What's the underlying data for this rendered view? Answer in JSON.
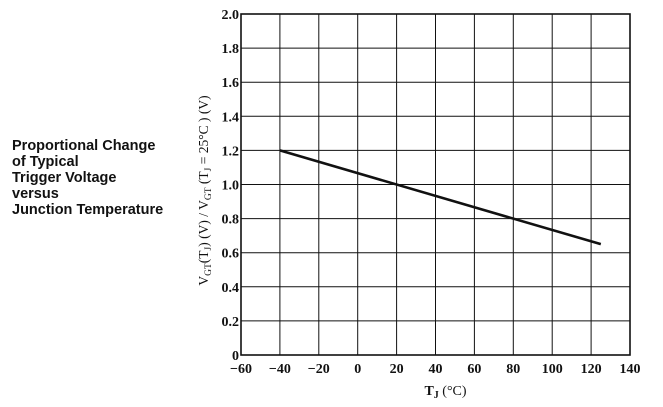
{
  "chart_data": {
    "type": "line",
    "title_lines": [
      "Proportional Change",
      "of Typical",
      "Trigger Voltage",
      "versus",
      "Junction Temperature"
    ],
    "ylabel": {
      "prefix": "V",
      "sub1": "GT",
      "mid1": "(T",
      "sub2": "J",
      "mid2": ") (V) / V",
      "sub3": "GT",
      "mid3": " (T",
      "sub4": "J",
      "suffix": " = 25°C ) (V)"
    },
    "xlabel": {
      "main": "T",
      "sub": "J",
      "unit": " (°C)"
    },
    "xlim": [
      -60,
      140
    ],
    "ylim": [
      0,
      2.0
    ],
    "x_ticks": [
      "−60",
      "−40",
      "−20",
      "0",
      "20",
      "40",
      "60",
      "80",
      "100",
      "120",
      "140"
    ],
    "y_ticks": [
      "0",
      "0.2",
      "0.4",
      "0.6",
      "0.8",
      "1.0",
      "1.2",
      "1.4",
      "1.6",
      "1.8",
      "2.0"
    ],
    "grid": true,
    "series": [
      {
        "x": [
          -40,
          125
        ],
        "y": [
          1.2,
          0.65
        ]
      }
    ]
  }
}
